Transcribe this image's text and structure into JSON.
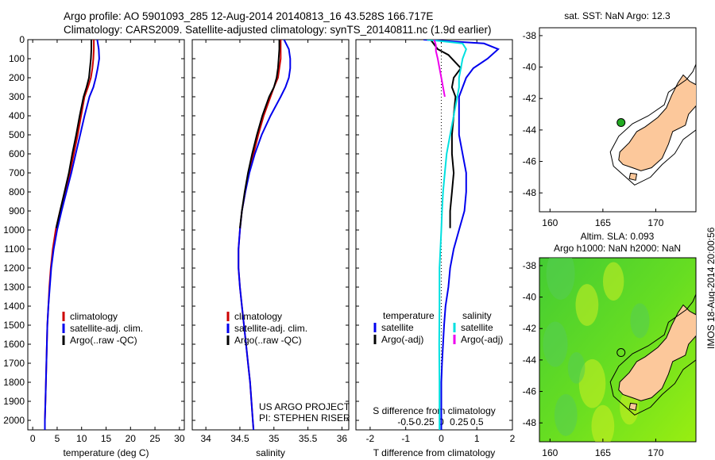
{
  "header": {
    "line1": "Argo profile: AO 5901093_285 12-Aug-2014 20140813_16 43.528S 166.717E",
    "line2": "Climatology: CARS2009. Satellite-adjusted climatology: synTS_20140811.nc (1.9d earlier)"
  },
  "side_text": "IMOS 18-Aug-2014 20:00:56",
  "colors": {
    "climatology": "#cc0000",
    "satellite": "#0000ee",
    "argo": "#000000",
    "s_satellite": "#00e0e0",
    "s_argo": "#ee00ee",
    "land": "#fcc89b",
    "float_marker": "#22aa22"
  },
  "chart_data": [
    {
      "type": "line",
      "name": "temperature-panel",
      "xlabel": "temperature (deg C)",
      "ylabel": "",
      "xlim": [
        -1,
        31
      ],
      "ylim": [
        2050,
        0
      ],
      "xticks": [
        "0",
        "5",
        "10",
        "15",
        "20",
        "25",
        "30"
      ],
      "yticks": [
        "0",
        "100",
        "200",
        "300",
        "400",
        "500",
        "600",
        "700",
        "800",
        "900",
        "1000",
        "1100",
        "1200",
        "1300",
        "1400",
        "1500",
        "1600",
        "1700",
        "1800",
        "1900",
        "2000"
      ],
      "legend": [
        "climatology",
        "satellite-adj. clim.",
        "Argo(..raw -QC)"
      ],
      "series": [
        {
          "name": "climatology",
          "color": "#cc0000",
          "points": [
            [
              12.5,
              0
            ],
            [
              12.5,
              50
            ],
            [
              12.4,
              100
            ],
            [
              12.2,
              150
            ],
            [
              11.9,
              200
            ],
            [
              11.3,
              250
            ],
            [
              10.6,
              300
            ],
            [
              9.9,
              400
            ],
            [
              9.2,
              500
            ],
            [
              8.4,
              600
            ],
            [
              7.6,
              700
            ],
            [
              6.6,
              800
            ],
            [
              5.6,
              900
            ],
            [
              4.7,
              1000
            ],
            [
              4.1,
              1100
            ],
            [
              3.7,
              1200
            ],
            [
              3.4,
              1300
            ],
            [
              3.2,
              1400
            ],
            [
              3.0,
              1500
            ],
            [
              2.9,
              1600
            ],
            [
              2.8,
              1700
            ],
            [
              2.7,
              1800
            ],
            [
              2.6,
              1900
            ],
            [
              2.5,
              2000
            ],
            [
              2.5,
              2050
            ]
          ]
        },
        {
          "name": "satellite-adj. clim.",
          "color": "#0000ee",
          "points": [
            [
              13.2,
              0
            ],
            [
              13.5,
              50
            ],
            [
              13.6,
              100
            ],
            [
              13.3,
              150
            ],
            [
              12.9,
              200
            ],
            [
              12.4,
              250
            ],
            [
              11.6,
              300
            ],
            [
              10.6,
              400
            ],
            [
              9.7,
              500
            ],
            [
              8.8,
              600
            ],
            [
              7.9,
              700
            ],
            [
              6.9,
              800
            ],
            [
              5.9,
              900
            ],
            [
              5.0,
              1000
            ],
            [
              4.3,
              1100
            ],
            [
              3.8,
              1200
            ],
            [
              3.5,
              1300
            ],
            [
              3.2,
              1400
            ],
            [
              3.0,
              1500
            ],
            [
              2.9,
              1600
            ],
            [
              2.8,
              1700
            ],
            [
              2.7,
              1800
            ],
            [
              2.6,
              1900
            ],
            [
              2.5,
              2000
            ],
            [
              2.5,
              2050
            ]
          ]
        },
        {
          "name": "Argo(..raw -QC)",
          "color": "#000000",
          "points": [
            [
              12.0,
              0
            ],
            [
              12.0,
              50
            ],
            [
              11.9,
              100
            ],
            [
              11.7,
              150
            ],
            [
              11.5,
              200
            ],
            [
              11.0,
              250
            ],
            [
              10.4,
              300
            ],
            [
              9.6,
              400
            ],
            [
              8.9,
              500
            ],
            [
              8.1,
              600
            ],
            [
              7.4,
              700
            ],
            [
              6.5,
              800
            ],
            [
              5.6,
              900
            ],
            [
              4.8,
              990
            ]
          ]
        }
      ]
    },
    {
      "type": "line",
      "name": "salinity-panel",
      "xlabel": "salinity",
      "xlim": [
        33.8,
        36.1
      ],
      "ylim": [
        2050,
        0
      ],
      "xticks": [
        "34",
        "34.5",
        "35",
        "35.5",
        "36"
      ],
      "legend": [
        "climatology",
        "satellite-adj. clim.",
        "Argo(..raw -QC)"
      ],
      "annotation": [
        "US ARGO PROJECT",
        "PI: STEPHEN RISER"
      ],
      "series": [
        {
          "name": "climatology",
          "color": "#cc0000",
          "points": [
            [
              35.1,
              0
            ],
            [
              35.1,
              50
            ],
            [
              35.1,
              100
            ],
            [
              35.08,
              150
            ],
            [
              35.06,
              200
            ],
            [
              35.0,
              250
            ],
            [
              34.95,
              300
            ],
            [
              34.85,
              400
            ],
            [
              34.77,
              500
            ],
            [
              34.7,
              600
            ],
            [
              34.63,
              700
            ],
            [
              34.58,
              800
            ],
            [
              34.53,
              900
            ],
            [
              34.5,
              1000
            ],
            [
              34.48,
              1100
            ],
            [
              34.48,
              1200
            ],
            [
              34.5,
              1300
            ],
            [
              34.53,
              1400
            ],
            [
              34.56,
              1500
            ],
            [
              34.59,
              1600
            ],
            [
              34.62,
              1700
            ],
            [
              34.65,
              1800
            ],
            [
              34.67,
              1900
            ],
            [
              34.69,
              2000
            ],
            [
              34.7,
              2050
            ]
          ]
        },
        {
          "name": "satellite-adj. clim.",
          "color": "#0000ee",
          "points": [
            [
              35.15,
              0
            ],
            [
              35.22,
              50
            ],
            [
              35.24,
              100
            ],
            [
              35.24,
              150
            ],
            [
              35.22,
              200
            ],
            [
              35.17,
              250
            ],
            [
              35.1,
              300
            ],
            [
              34.95,
              400
            ],
            [
              34.82,
              500
            ],
            [
              34.72,
              600
            ],
            [
              34.64,
              700
            ],
            [
              34.58,
              800
            ],
            [
              34.53,
              900
            ],
            [
              34.5,
              1000
            ],
            [
              34.48,
              1100
            ],
            [
              34.48,
              1200
            ],
            [
              34.5,
              1300
            ],
            [
              34.53,
              1400
            ],
            [
              34.56,
              1500
            ],
            [
              34.59,
              1600
            ],
            [
              34.62,
              1700
            ],
            [
              34.65,
              1800
            ],
            [
              34.67,
              1900
            ],
            [
              34.69,
              2000
            ],
            [
              34.7,
              2050
            ]
          ]
        },
        {
          "name": "Argo(..raw -QC)",
          "color": "#000000",
          "points": [
            [
              35.08,
              0
            ],
            [
              35.08,
              50
            ],
            [
              35.07,
              100
            ],
            [
              35.06,
              150
            ],
            [
              35.04,
              200
            ],
            [
              35.0,
              250
            ],
            [
              34.93,
              300
            ],
            [
              34.83,
              400
            ],
            [
              34.75,
              500
            ],
            [
              34.68,
              600
            ],
            [
              34.62,
              700
            ],
            [
              34.57,
              800
            ],
            [
              34.53,
              900
            ],
            [
              34.5,
              990
            ]
          ]
        }
      ]
    },
    {
      "type": "line",
      "name": "difference-panel",
      "xlabel": "T difference from climatology",
      "xlabel_top": "S difference from climatology",
      "xlim": [
        -2.4,
        2.0
      ],
      "ylim": [
        2050,
        0
      ],
      "xticks": [
        "-2",
        "-1",
        "0",
        "1",
        "2"
      ],
      "s_xticks": [
        "-0.5",
        "-0.25",
        "0",
        "0.25",
        "0.5"
      ],
      "legend_headers": [
        "temperature",
        "salinity"
      ],
      "legend": [
        "satellite",
        "Argo(-adj)",
        "satellite",
        "Argo(-adj)"
      ],
      "series": [
        {
          "name": "satellite",
          "color": "#0000ee",
          "points": [
            [
              -0.5,
              0
            ],
            [
              1.2,
              20
            ],
            [
              1.6,
              50
            ],
            [
              1.3,
              100
            ],
            [
              0.9,
              150
            ],
            [
              0.7,
              200
            ],
            [
              0.6,
              250
            ],
            [
              0.5,
              300
            ],
            [
              0.5,
              400
            ],
            [
              0.5,
              500
            ],
            [
              0.6,
              600
            ],
            [
              0.7,
              700
            ],
            [
              0.7,
              800
            ],
            [
              0.65,
              900
            ],
            [
              0.5,
              1000
            ],
            [
              0.35,
              1100
            ],
            [
              0.25,
              1200
            ],
            [
              0.2,
              1300
            ],
            [
              0.12,
              1400
            ],
            [
              0.08,
              1500
            ],
            [
              0.05,
              1600
            ],
            [
              0.02,
              1700
            ],
            [
              0.0,
              1800
            ],
            [
              0.0,
              1900
            ],
            [
              0.0,
              2000
            ],
            [
              0.0,
              2050
            ]
          ]
        },
        {
          "name": "Argo(-adj)",
          "color": "#000000",
          "points": [
            [
              -0.3,
              0
            ],
            [
              -0.1,
              50
            ],
            [
              0.2,
              80
            ],
            [
              0.4,
              120
            ],
            [
              0.55,
              150
            ],
            [
              0.35,
              200
            ],
            [
              0.3,
              250
            ],
            [
              0.4,
              300
            ],
            [
              0.35,
              400
            ],
            [
              0.3,
              500
            ],
            [
              0.3,
              600
            ],
            [
              0.35,
              700
            ],
            [
              0.3,
              800
            ],
            [
              0.25,
              900
            ],
            [
              0.25,
              990
            ]
          ]
        },
        {
          "name": "satellite",
          "color": "#00e0e0",
          "points": [
            [
              -0.4,
              0
            ],
            [
              0.6,
              20
            ],
            [
              0.7,
              50
            ],
            [
              0.6,
              100
            ],
            [
              0.55,
              150
            ],
            [
              0.5,
              200
            ],
            [
              0.5,
              250
            ],
            [
              0.45,
              300
            ],
            [
              0.35,
              400
            ],
            [
              0.25,
              500
            ],
            [
              0.15,
              600
            ],
            [
              0.1,
              700
            ],
            [
              0.05,
              800
            ],
            [
              0.02,
              900
            ],
            [
              0.0,
              1000
            ],
            [
              -0.05,
              1200
            ],
            [
              -0.05,
              1400
            ],
            [
              -0.06,
              1600
            ],
            [
              -0.05,
              1800
            ],
            [
              -0.05,
              2000
            ],
            [
              -0.05,
              2050
            ]
          ]
        },
        {
          "name": "Argo(-adj)",
          "color": "#ee00ee",
          "points": [
            [
              -0.2,
              0
            ],
            [
              -0.15,
              30
            ],
            [
              -0.15,
              60
            ],
            [
              -0.1,
              100
            ],
            [
              -0.05,
              150
            ],
            [
              0.0,
              200
            ],
            [
              0.05,
              250
            ],
            [
              0.1,
              300
            ]
          ]
        }
      ]
    },
    {
      "type": "map",
      "name": "sst-map",
      "title": "sat. SST: NaN Argo: 12.3",
      "lon_range": [
        159,
        173.8
      ],
      "lat_range": [
        -49.2,
        -37.5
      ],
      "xticks": [
        "160",
        "165",
        "170"
      ],
      "yticks": [
        "-38",
        "-40",
        "-42",
        "-44",
        "-46",
        "-48"
      ],
      "marker": [
        166.717,
        -43.528
      ]
    },
    {
      "type": "map",
      "name": "sla-map",
      "title_lines": [
        "Altim. SLA: 0.093",
        "Argo h1000: NaN h2000: NaN"
      ],
      "lon_range": [
        159,
        173.8
      ],
      "lat_range": [
        -49.2,
        -37.5
      ],
      "xticks": [
        "160",
        "165",
        "170"
      ],
      "yticks": [
        "-38",
        "-40",
        "-42",
        "-44",
        "-46",
        "-48"
      ],
      "marker": [
        166.717,
        -43.528
      ]
    }
  ]
}
